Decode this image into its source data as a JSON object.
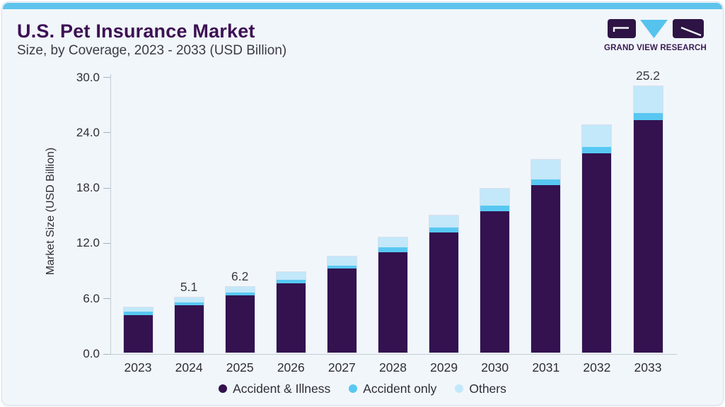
{
  "page": {
    "title": "U.S. Pet Insurance Market",
    "subtitle": "Size, by Coverage, 2023 - 2033 (USD Billion)"
  },
  "logo": {
    "text": "GRAND VIEW RESEARCH",
    "block_color": "#2E1444",
    "triangle_color": "#55C3EE"
  },
  "colors": {
    "accent_strip": "#5EC3EC",
    "card_background": "#F1F6FA",
    "title_text": "#3D1054",
    "body_text": "#2E2E38",
    "axis_line": "#C5CCD5"
  },
  "chart_data": {
    "type": "bar",
    "stacked": true,
    "title": "U.S. Pet Insurance Market Size, by Coverage, 2023 - 2033 (USD Billion)",
    "categories": [
      "2023",
      "2024",
      "2025",
      "2026",
      "2027",
      "2028",
      "2029",
      "2030",
      "2031",
      "2032",
      "2033"
    ],
    "series": [
      {
        "name": "Accident & Illness",
        "color": "#33124F",
        "values": [
          4.1,
          5.1,
          6.2,
          7.5,
          9.1,
          10.9,
          13.0,
          15.35,
          18.15,
          21.6,
          25.2
        ]
      },
      {
        "name": "Accident only",
        "color": "#58C8F2",
        "values": [
          0.35,
          0.35,
          0.35,
          0.4,
          0.3,
          0.5,
          0.55,
          0.6,
          0.65,
          0.7,
          0.8
        ]
      },
      {
        "name": "Others",
        "color": "#C2E8F9",
        "values": [
          0.45,
          0.55,
          0.55,
          0.8,
          1.0,
          1.1,
          1.35,
          1.8,
          2.15,
          2.4,
          2.9
        ]
      }
    ],
    "point_labels": [
      "",
      "5.1",
      "6.2",
      "",
      "",
      "",
      "",
      "",
      "",
      "",
      "25.2"
    ],
    "xlabel": "",
    "ylabel": "Market Size (USD Billion)",
    "ylim": [
      0,
      30
    ],
    "yticks": [
      "0.0",
      "6.0",
      "12.0",
      "18.0",
      "24.0",
      "30.0"
    ],
    "grid": false,
    "legend_position": "bottom"
  }
}
